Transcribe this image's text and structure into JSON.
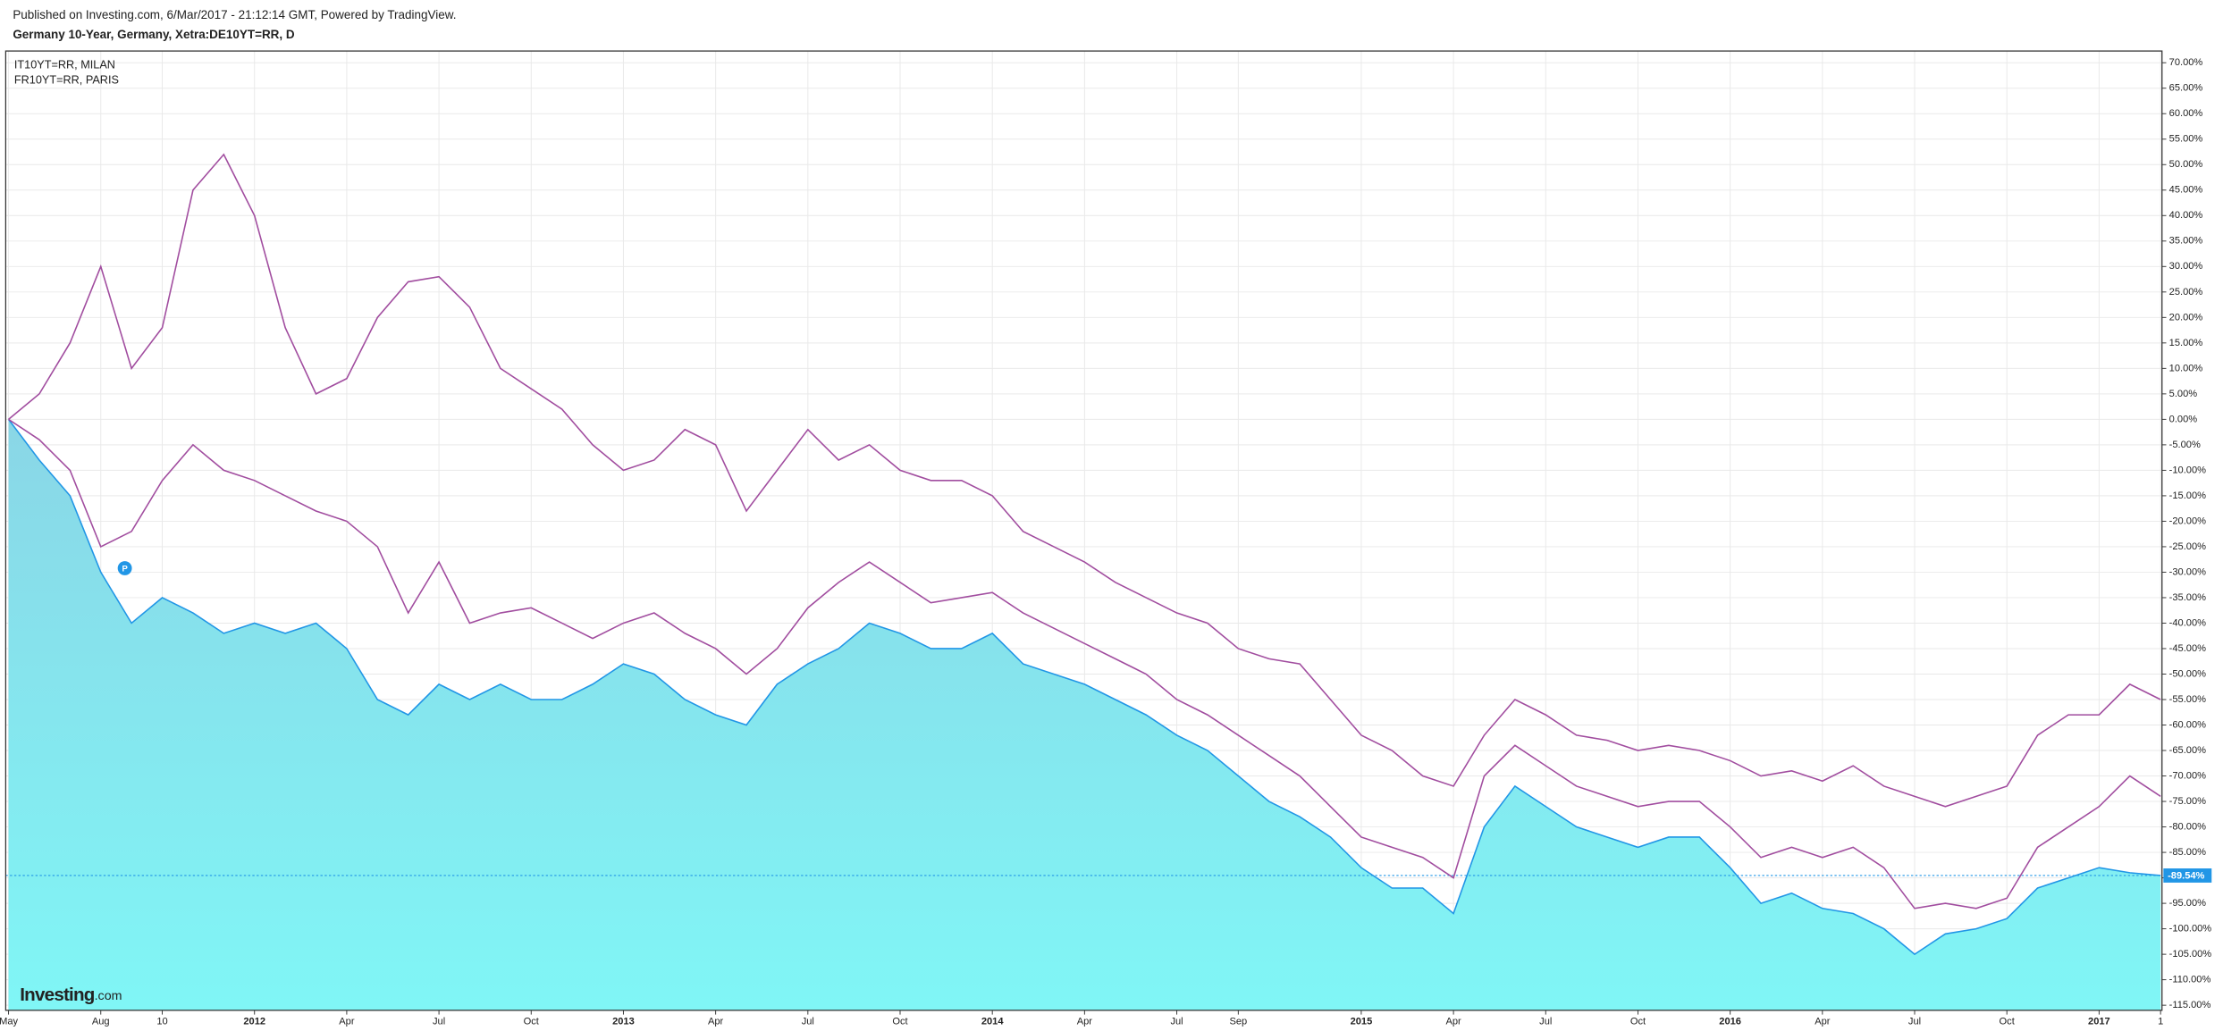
{
  "chart_data": {
    "type": "line",
    "published": "Published on Investing.com, 6/Mar/2017 - 21:12:14 GMT, Powered by TradingView.",
    "title": "Germany 10-Year, Germany, Xetra:DE10YT=RR, D",
    "logo": {
      "main": "Investing",
      "suffix": ".com"
    },
    "categories": [
      "May",
      null,
      null,
      "Aug",
      null,
      "10",
      null,
      null,
      "2012",
      null,
      null,
      "Apr",
      null,
      null,
      "Jul",
      null,
      null,
      "Oct",
      null,
      null,
      "2013",
      null,
      null,
      "Apr",
      null,
      null,
      "Jul",
      null,
      null,
      "Oct",
      null,
      null,
      "2014",
      null,
      null,
      "Apr",
      null,
      null,
      "Jul",
      null,
      "Sep",
      null,
      null,
      null,
      "2015",
      null,
      null,
      "Apr",
      null,
      null,
      "Jul",
      null,
      null,
      "Oct",
      null,
      null,
      "2016",
      null,
      null,
      "Apr",
      null,
      null,
      "Jul",
      null,
      null,
      "Oct",
      null,
      null,
      "2017",
      null,
      "1"
    ],
    "series": [
      {
        "type": "area",
        "color": "#2196e6",
        "fill_top": "#8ad6e6",
        "fill_bottom": "#80f6f6",
        "values": [
          0,
          -8,
          -15,
          -30,
          -40,
          -35,
          -38,
          -42,
          -40,
          -42,
          -40,
          -45,
          -55,
          -58,
          -52,
          -55,
          -52,
          -55,
          -55,
          -52,
          -48,
          -50,
          -55,
          -58,
          -60,
          -52,
          -48,
          -45,
          -40,
          -42,
          -45,
          -45,
          -42,
          -48,
          -50,
          -52,
          -55,
          -58,
          -62,
          -65,
          -70,
          -75,
          -78,
          -82,
          -88,
          -92,
          -92,
          -97,
          -80,
          -72,
          -76,
          -80,
          -82,
          -84,
          -82,
          -82,
          -88,
          -95,
          -93,
          -96,
          -97,
          -100,
          -105,
          -101,
          -100,
          -98,
          -92,
          -90,
          -88,
          -89,
          -89.54
        ],
        "value_labels": [
          null,
          null,
          null,
          null,
          null,
          null,
          null,
          null,
          null,
          null,
          null,
          null,
          null,
          null,
          null,
          null,
          null,
          null,
          null,
          null,
          null,
          null,
          null,
          null,
          null,
          null,
          null,
          null,
          null,
          null,
          null,
          null,
          null,
          null,
          null,
          null,
          null,
          null,
          null,
          null,
          null,
          null,
          null,
          null,
          null,
          null,
          null,
          null,
          null,
          null,
          null,
          null,
          null,
          null,
          null,
          null,
          null,
          null,
          null,
          null,
          null,
          null,
          null,
          null,
          null,
          null,
          null,
          null,
          null,
          null,
          "-89.54%"
        ]
      },
      {
        "type": "line",
        "name": "IT10YT=RR, MILAN",
        "color": "#a14d9f",
        "values": [
          0,
          5,
          15,
          30,
          10,
          18,
          45,
          52,
          40,
          18,
          5,
          8,
          20,
          27,
          28,
          22,
          10,
          6,
          2,
          -5,
          -10,
          -8,
          -2,
          -5,
          -18,
          -10,
          -2,
          -8,
          -5,
          -10,
          -12,
          -12,
          -15,
          -22,
          -25,
          -28,
          -32,
          -35,
          -38,
          -40,
          -45,
          -47,
          -48,
          -55,
          -62,
          -65,
          -70,
          -72,
          -62,
          -55,
          -58,
          -62,
          -63,
          -65,
          -64,
          -65,
          -67,
          -70,
          -69,
          -71,
          -68,
          -72,
          -74,
          -76,
          -74,
          -72,
          -62,
          -58,
          -58,
          -52,
          -55
        ]
      },
      {
        "type": "line",
        "name": "FR10YT=RR, PARIS",
        "color": "#a14d9f",
        "values": [
          0,
          -4,
          -10,
          -25,
          -22,
          -12,
          -5,
          -10,
          -12,
          -15,
          -18,
          -20,
          -25,
          -38,
          -28,
          -40,
          -38,
          -37,
          -40,
          -43,
          -40,
          -38,
          -42,
          -45,
          -50,
          -45,
          -37,
          -32,
          -28,
          -32,
          -36,
          -35,
          -34,
          -38,
          -41,
          -44,
          -47,
          -50,
          -55,
          -58,
          -62,
          -66,
          -70,
          -76,
          -82,
          -84,
          -86,
          -90,
          -70,
          -64,
          -68,
          -72,
          -74,
          -76,
          -75,
          -75,
          -80,
          -86,
          -84,
          -86,
          -84,
          -88,
          -96,
          -95,
          -96,
          -94,
          -84,
          -80,
          -76,
          -70,
          -74
        ]
      }
    ],
    "ylim": [
      -116,
      72.3
    ],
    "yticks": [
      {
        "value": 70,
        "label": "70.00%"
      },
      {
        "value": 65,
        "label": "65.00%"
      },
      {
        "value": 60,
        "label": "60.00%"
      },
      {
        "value": 55,
        "label": "55.00%"
      },
      {
        "value": 50,
        "label": "50.00%"
      },
      {
        "value": 45,
        "label": "45.00%"
      },
      {
        "value": 40,
        "label": "40.00%"
      },
      {
        "value": 35,
        "label": "35.00%"
      },
      {
        "value": 30,
        "label": "30.00%"
      },
      {
        "value": 25,
        "label": "25.00%"
      },
      {
        "value": 20,
        "label": "20.00%"
      },
      {
        "value": 15,
        "label": "15.00%"
      },
      {
        "value": 10,
        "label": "10.00%"
      },
      {
        "value": 5,
        "label": "5.00%"
      },
      {
        "value": 0,
        "label": "0.00%"
      },
      {
        "value": -5,
        "label": "-5.00%"
      },
      {
        "value": -10,
        "label": "-10.00%"
      },
      {
        "value": -15,
        "label": "-15.00%"
      },
      {
        "value": -20,
        "label": "-20.00%"
      },
      {
        "value": -25,
        "label": "-25.00%"
      },
      {
        "value": -30,
        "label": "-30.00%"
      },
      {
        "value": -35,
        "label": "-35.00%"
      },
      {
        "value": -40,
        "label": "-40.00%"
      },
      {
        "value": -45,
        "label": "-45.00%"
      },
      {
        "value": -50,
        "label": "-50.00%"
      },
      {
        "value": -55,
        "label": "-55.00%"
      },
      {
        "value": -60,
        "label": "-60.00%"
      },
      {
        "value": -65,
        "label": "-65.00%"
      },
      {
        "value": -70,
        "label": "-70.00%"
      },
      {
        "value": -75,
        "label": "-75.00%"
      },
      {
        "value": -80,
        "label": "-80.00%"
      },
      {
        "value": -85,
        "label": "-85.00%"
      },
      {
        "value": -90,
        "label": "-90.00%"
      },
      {
        "value": -95,
        "label": "-95.00%"
      },
      {
        "value": -100,
        "label": "-100.00%"
      },
      {
        "value": -105,
        "label": "-105.00%"
      },
      {
        "value": -110,
        "label": "-110.00%"
      },
      {
        "value": -115,
        "label": "-115.00%"
      }
    ],
    "grid": true,
    "log_scale": false,
    "legend": "top-left"
  }
}
